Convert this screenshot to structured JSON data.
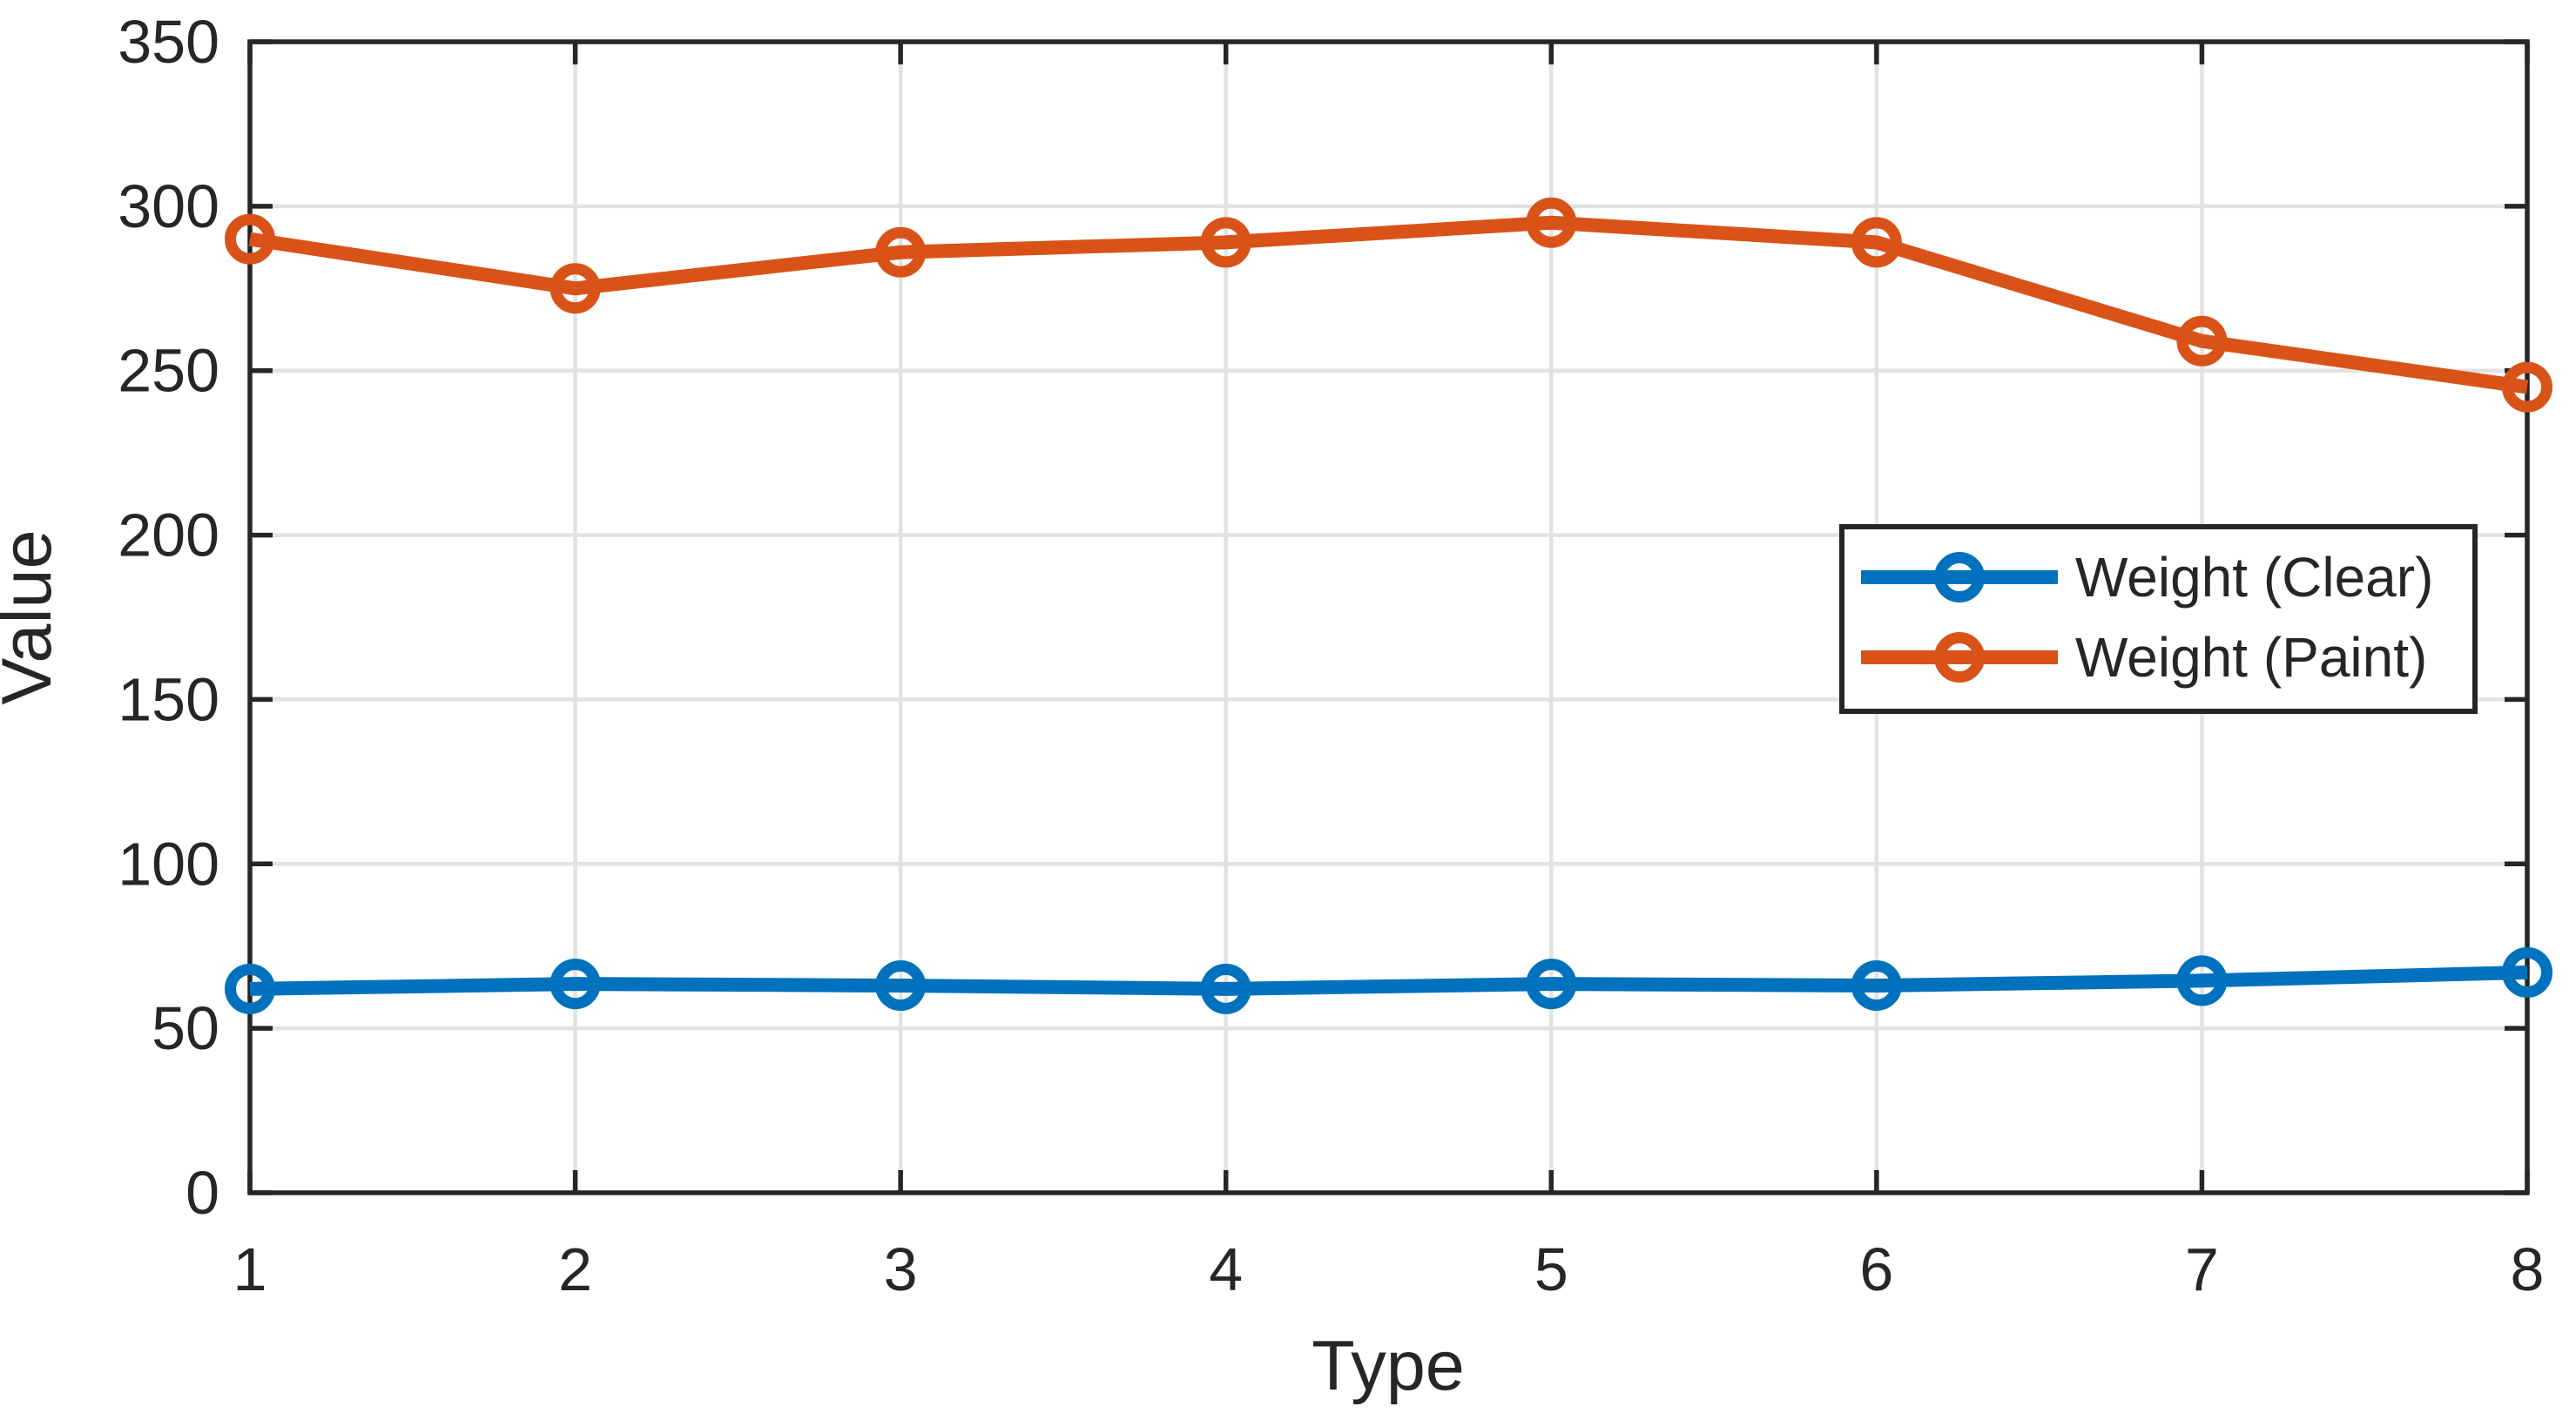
{
  "chart_data": {
    "type": "line",
    "title": "",
    "xlabel": "Type",
    "ylabel": "Value",
    "x": [
      1,
      2,
      3,
      4,
      5,
      6,
      7,
      8
    ],
    "x_tick_labels": [
      "1",
      "2",
      "3",
      "4",
      "5",
      "6",
      "7",
      "8"
    ],
    "y_tick_labels": [
      "0",
      "50",
      "100",
      "150",
      "200",
      "250",
      "300",
      "350"
    ],
    "y_tick_values": [
      0,
      50,
      100,
      150,
      200,
      250,
      300,
      350
    ],
    "xlim": [
      1,
      8
    ],
    "ylim": [
      0,
      350
    ],
    "grid": "on",
    "legend_position": "inside-middle-right",
    "series": [
      {
        "name": "Weight (Clear)",
        "color": "#0072BD",
        "marker": "open-circle",
        "values": [
          62,
          63.5,
          63,
          62,
          63.5,
          63,
          64.5,
          67
        ]
      },
      {
        "name": "Weight (Paint)",
        "color": "#D95319",
        "marker": "open-circle",
        "values": [
          290,
          275,
          286,
          289,
          295,
          289,
          259,
          245
        ]
      }
    ],
    "colors": {
      "background": "#FFFFFF",
      "grid": "#E2E2E2",
      "axis": "#262626",
      "tick_label": "#262626",
      "legend_border": "#262626",
      "legend_background": "#FFFFFF"
    }
  }
}
